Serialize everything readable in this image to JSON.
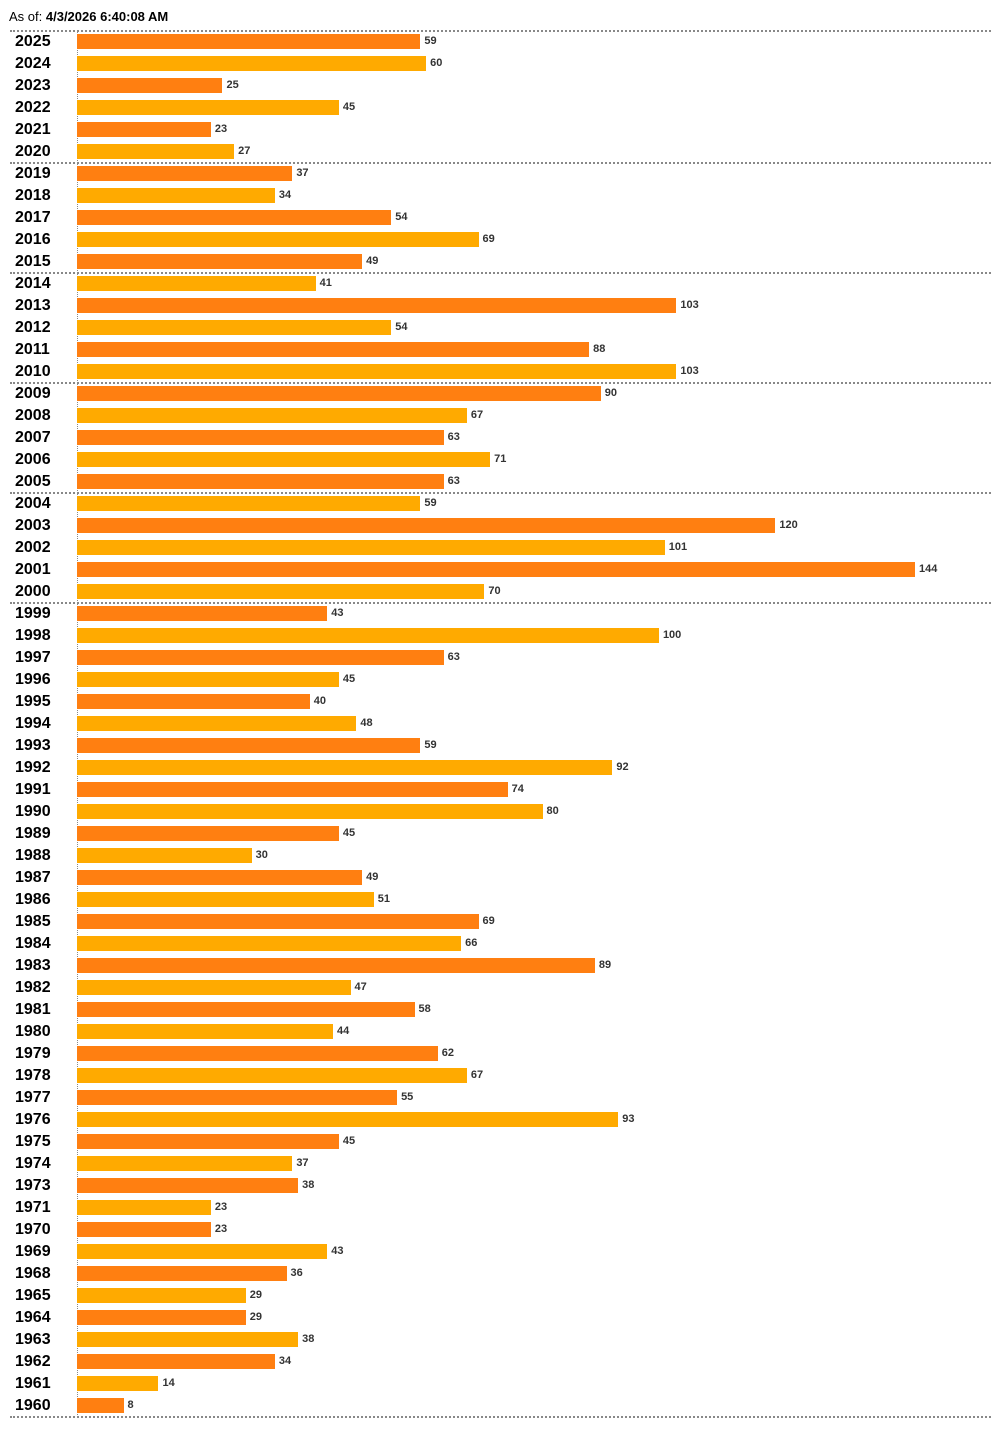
{
  "header": {
    "as_of_label": "As of:",
    "as_of_value": "4/3/2026 6:40:08 AM"
  },
  "colors": {
    "odd": "#FF7F11",
    "even": "#FFAA00",
    "separator": "#888888"
  },
  "chart_data": {
    "type": "bar",
    "orientation": "horizontal",
    "title": "",
    "xlabel": "",
    "ylabel": "",
    "xlim": [
      0,
      144
    ],
    "grid": false,
    "categories": [
      "2025",
      "2024",
      "2023",
      "2022",
      "2021",
      "2020",
      "2019",
      "2018",
      "2017",
      "2016",
      "2015",
      "2014",
      "2013",
      "2012",
      "2011",
      "2010",
      "2009",
      "2008",
      "2007",
      "2006",
      "2005",
      "2004",
      "2003",
      "2002",
      "2001",
      "2000",
      "1999",
      "1998",
      "1997",
      "1996",
      "1995",
      "1994",
      "1993",
      "1992",
      "1991",
      "1990",
      "1989",
      "1988",
      "1987",
      "1986",
      "1985",
      "1984",
      "1983",
      "1982",
      "1981",
      "1980",
      "1979",
      "1978",
      "1977",
      "1976",
      "1975",
      "1974",
      "1973",
      "1971",
      "1970",
      "1969",
      "1968",
      "1965",
      "1964",
      "1963",
      "1962",
      "1961",
      "1960"
    ],
    "values": [
      59,
      60,
      25,
      45,
      23,
      27,
      37,
      34,
      54,
      69,
      49,
      41,
      103,
      54,
      88,
      103,
      90,
      67,
      63,
      71,
      63,
      59,
      120,
      101,
      144,
      70,
      43,
      100,
      63,
      45,
      40,
      48,
      59,
      92,
      74,
      80,
      45,
      30,
      49,
      51,
      69,
      66,
      89,
      47,
      58,
      44,
      62,
      67,
      55,
      93,
      45,
      37,
      38,
      23,
      23,
      43,
      36,
      29,
      29,
      38,
      34,
      14,
      8
    ],
    "separators_before": [
      "2019",
      "2014",
      "2009",
      "2004",
      "1999"
    ]
  }
}
